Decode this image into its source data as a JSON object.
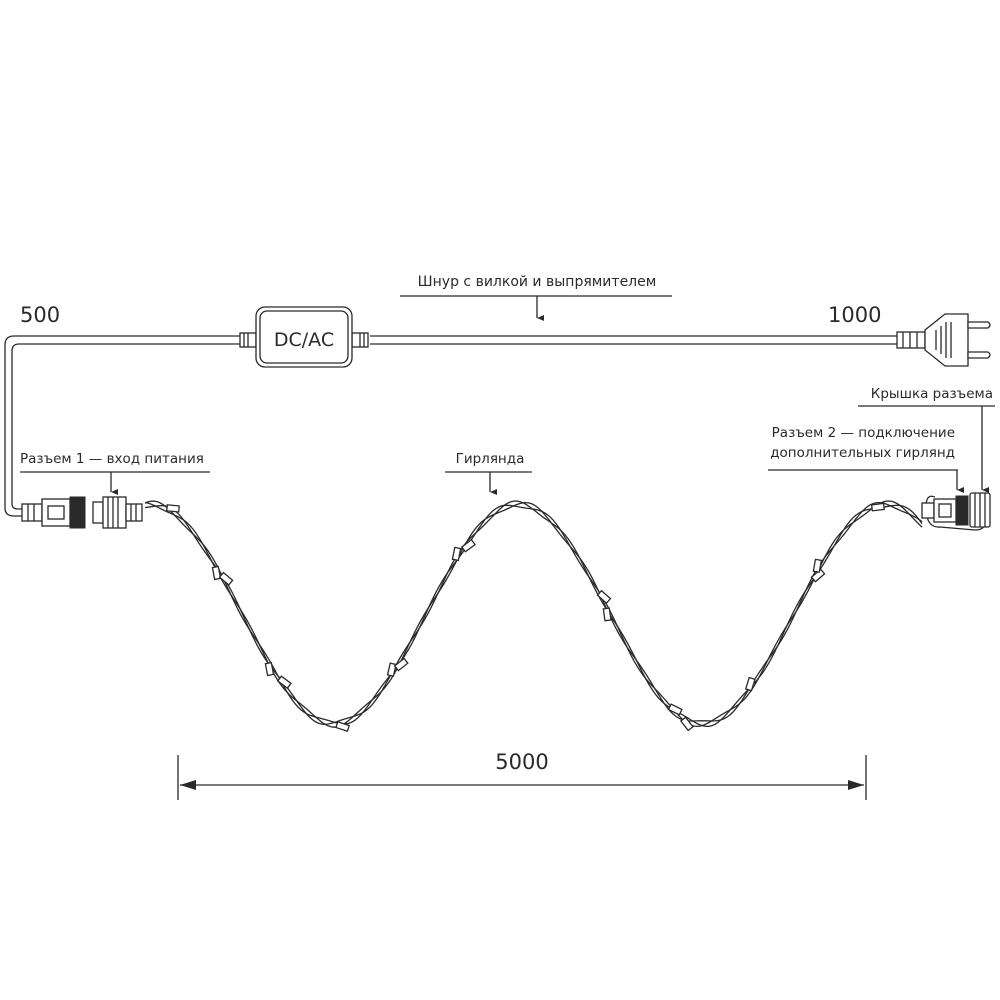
{
  "diagram": {
    "cable_label": "Шнур с вилкой и выпрямителем",
    "length_left": "500",
    "length_right": "1000",
    "rectifier_label": "DC/AC",
    "connector1_label": "Разъем 1 — вход питания",
    "garland_label": "Гирлянда",
    "cap_label": "Крышка разъема",
    "connector2_label_line1": "Разъем 2 — подключение",
    "connector2_label_line2": "дополнительных гирлянд",
    "garland_length": "5000",
    "line_color": "#2a2a2a"
  }
}
